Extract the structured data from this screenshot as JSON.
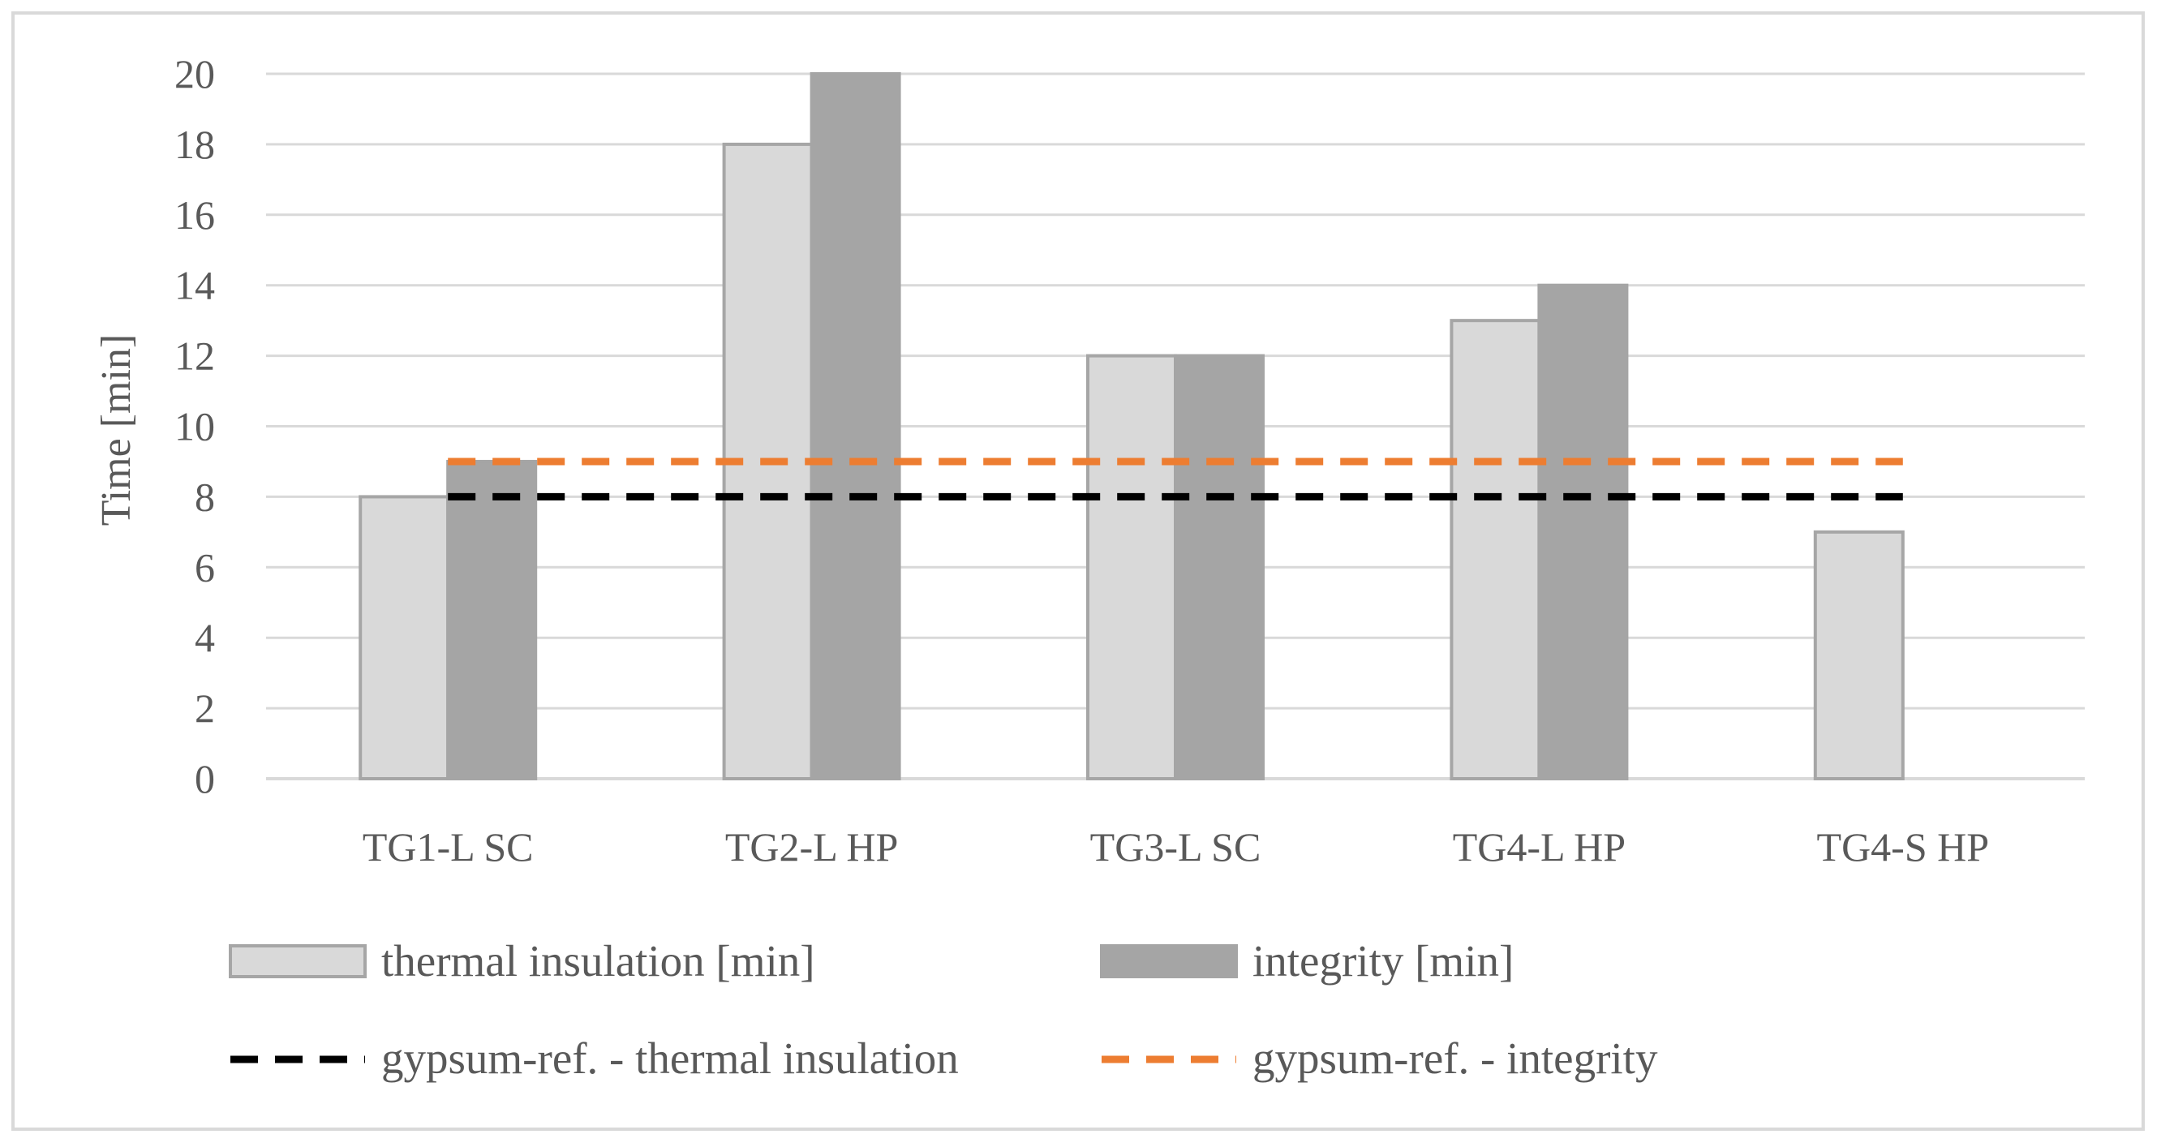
{
  "chart_data": {
    "type": "bar",
    "title": "",
    "xlabel": "",
    "ylabel": "Time [min]",
    "ylim": [
      0,
      20
    ],
    "yticks": [
      0,
      2,
      4,
      6,
      8,
      10,
      12,
      14,
      16,
      18,
      20
    ],
    "grid": true,
    "categories": [
      "TG1-L SC",
      "TG2-L HP",
      "TG3-L SC",
      "TG4-L HP",
      "TG4-S HP"
    ],
    "series": [
      {
        "name": "thermal insulation [min]",
        "values": [
          8,
          18,
          12,
          13,
          7
        ],
        "color": "#d9d9d9",
        "stroke": "#a6a6a6"
      },
      {
        "name": "integrity [min]",
        "values": [
          9,
          20,
          12,
          14,
          null
        ],
        "color": "#a5a5a5",
        "stroke": "#a5a5a5"
      }
    ],
    "reference_lines": [
      {
        "name": "gypsum-ref. - thermal insulation",
        "value": 8,
        "color": "#000000",
        "style": "dashed"
      },
      {
        "name": "gypsum-ref. - integrity",
        "value": 9,
        "color": "#ed7d31",
        "style": "dashed"
      }
    ],
    "legend_position": "bottom"
  }
}
